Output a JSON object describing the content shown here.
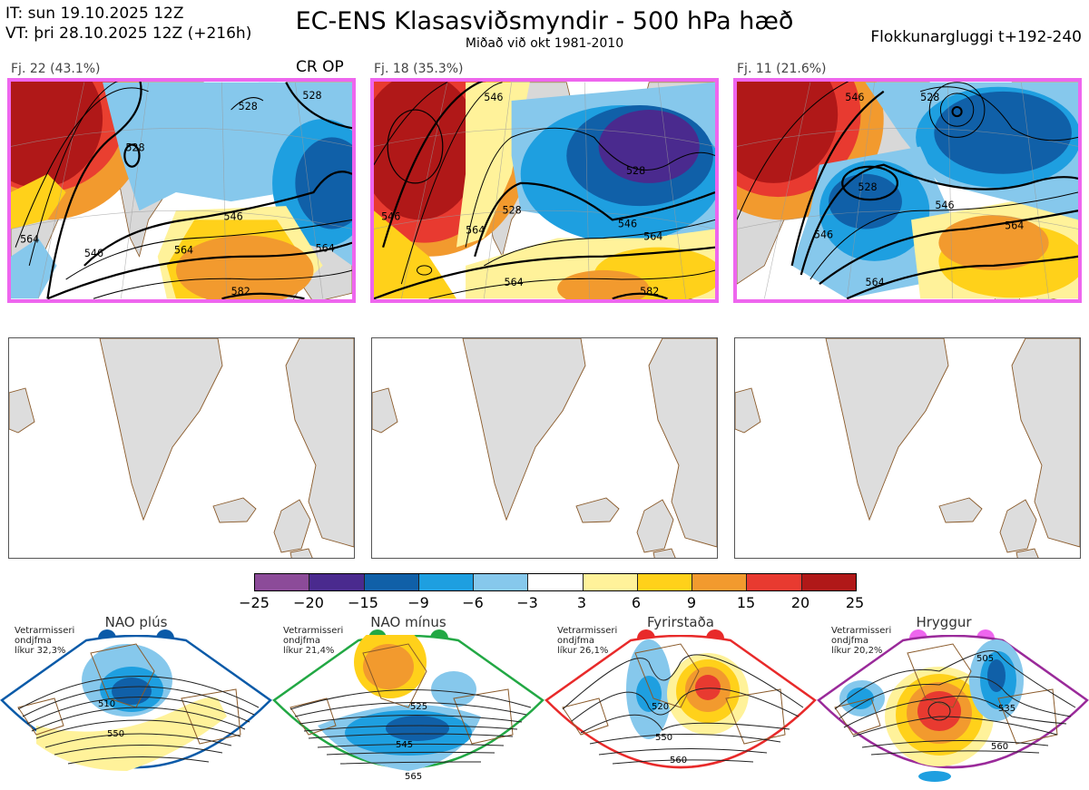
{
  "header": {
    "init_time": "IT: sun 19.10.2025 12Z",
    "valid_time": "VT: þri 28.10.2025 12Z  (+216h)",
    "title": "EC-ENS Klasasviðsmyndir - 500 hPa hæð",
    "subtitle": "Miðað við okt 1981-2010",
    "window": "Flokkunargluggi t+192-240"
  },
  "clusters": [
    {
      "label": "Fj. 22 (43.1%)",
      "op_tag": "CR OP",
      "contours": [
        "528",
        "528",
        "528",
        "546",
        "546",
        "564",
        "564",
        "564",
        "582"
      ]
    },
    {
      "label": "Fj. 18 (35.3%)",
      "op_tag": "",
      "contours": [
        "546",
        "546",
        "528",
        "546",
        "564",
        "564",
        "564",
        "582",
        "528"
      ]
    },
    {
      "label": "Fj. 11 (21.6%)",
      "op_tag": "",
      "contours": [
        "546",
        "528",
        "528",
        "546",
        "564",
        "564",
        "546"
      ]
    }
  ],
  "colorbar": {
    "colors": [
      "#8c4b99",
      "#4a2a8e",
      "#1060a8",
      "#1e9fe0",
      "#86c8ec",
      "#ffffff",
      "#fff29a",
      "#ffd11a",
      "#f29a2e",
      "#e83a30",
      "#b01818"
    ],
    "ticks": [
      "−25",
      "−20",
      "−15",
      "−9",
      "−6",
      "−3",
      "3",
      "6",
      "9",
      "15",
      "20",
      "25"
    ]
  },
  "regimes": [
    {
      "name": "NAO plús",
      "info": [
        "Vetrarmisseri",
        "ondjfma",
        "líkur 32,3%"
      ],
      "color": "#0a5aa8",
      "contours": [
        "510",
        "550"
      ]
    },
    {
      "name": "NAO mínus",
      "info": [
        "Vetrarmisseri",
        "ondjfma",
        "líkur 21,4%"
      ],
      "color": "#22a844",
      "contours": [
        "525",
        "545",
        "565"
      ]
    },
    {
      "name": "Fyrirstaða",
      "info": [
        "Vetrarmisseri",
        "ondjfma",
        "líkur 26,1%"
      ],
      "color": "#e82a2a",
      "contours": [
        "520",
        "550",
        "560"
      ]
    },
    {
      "name": "Hryggur",
      "info": [
        "Vetrarmisseri",
        "ondjfma",
        "líkur 20,2%"
      ],
      "color": "#ee66ee",
      "contours": [
        "505",
        "535",
        "560"
      ]
    }
  ]
}
